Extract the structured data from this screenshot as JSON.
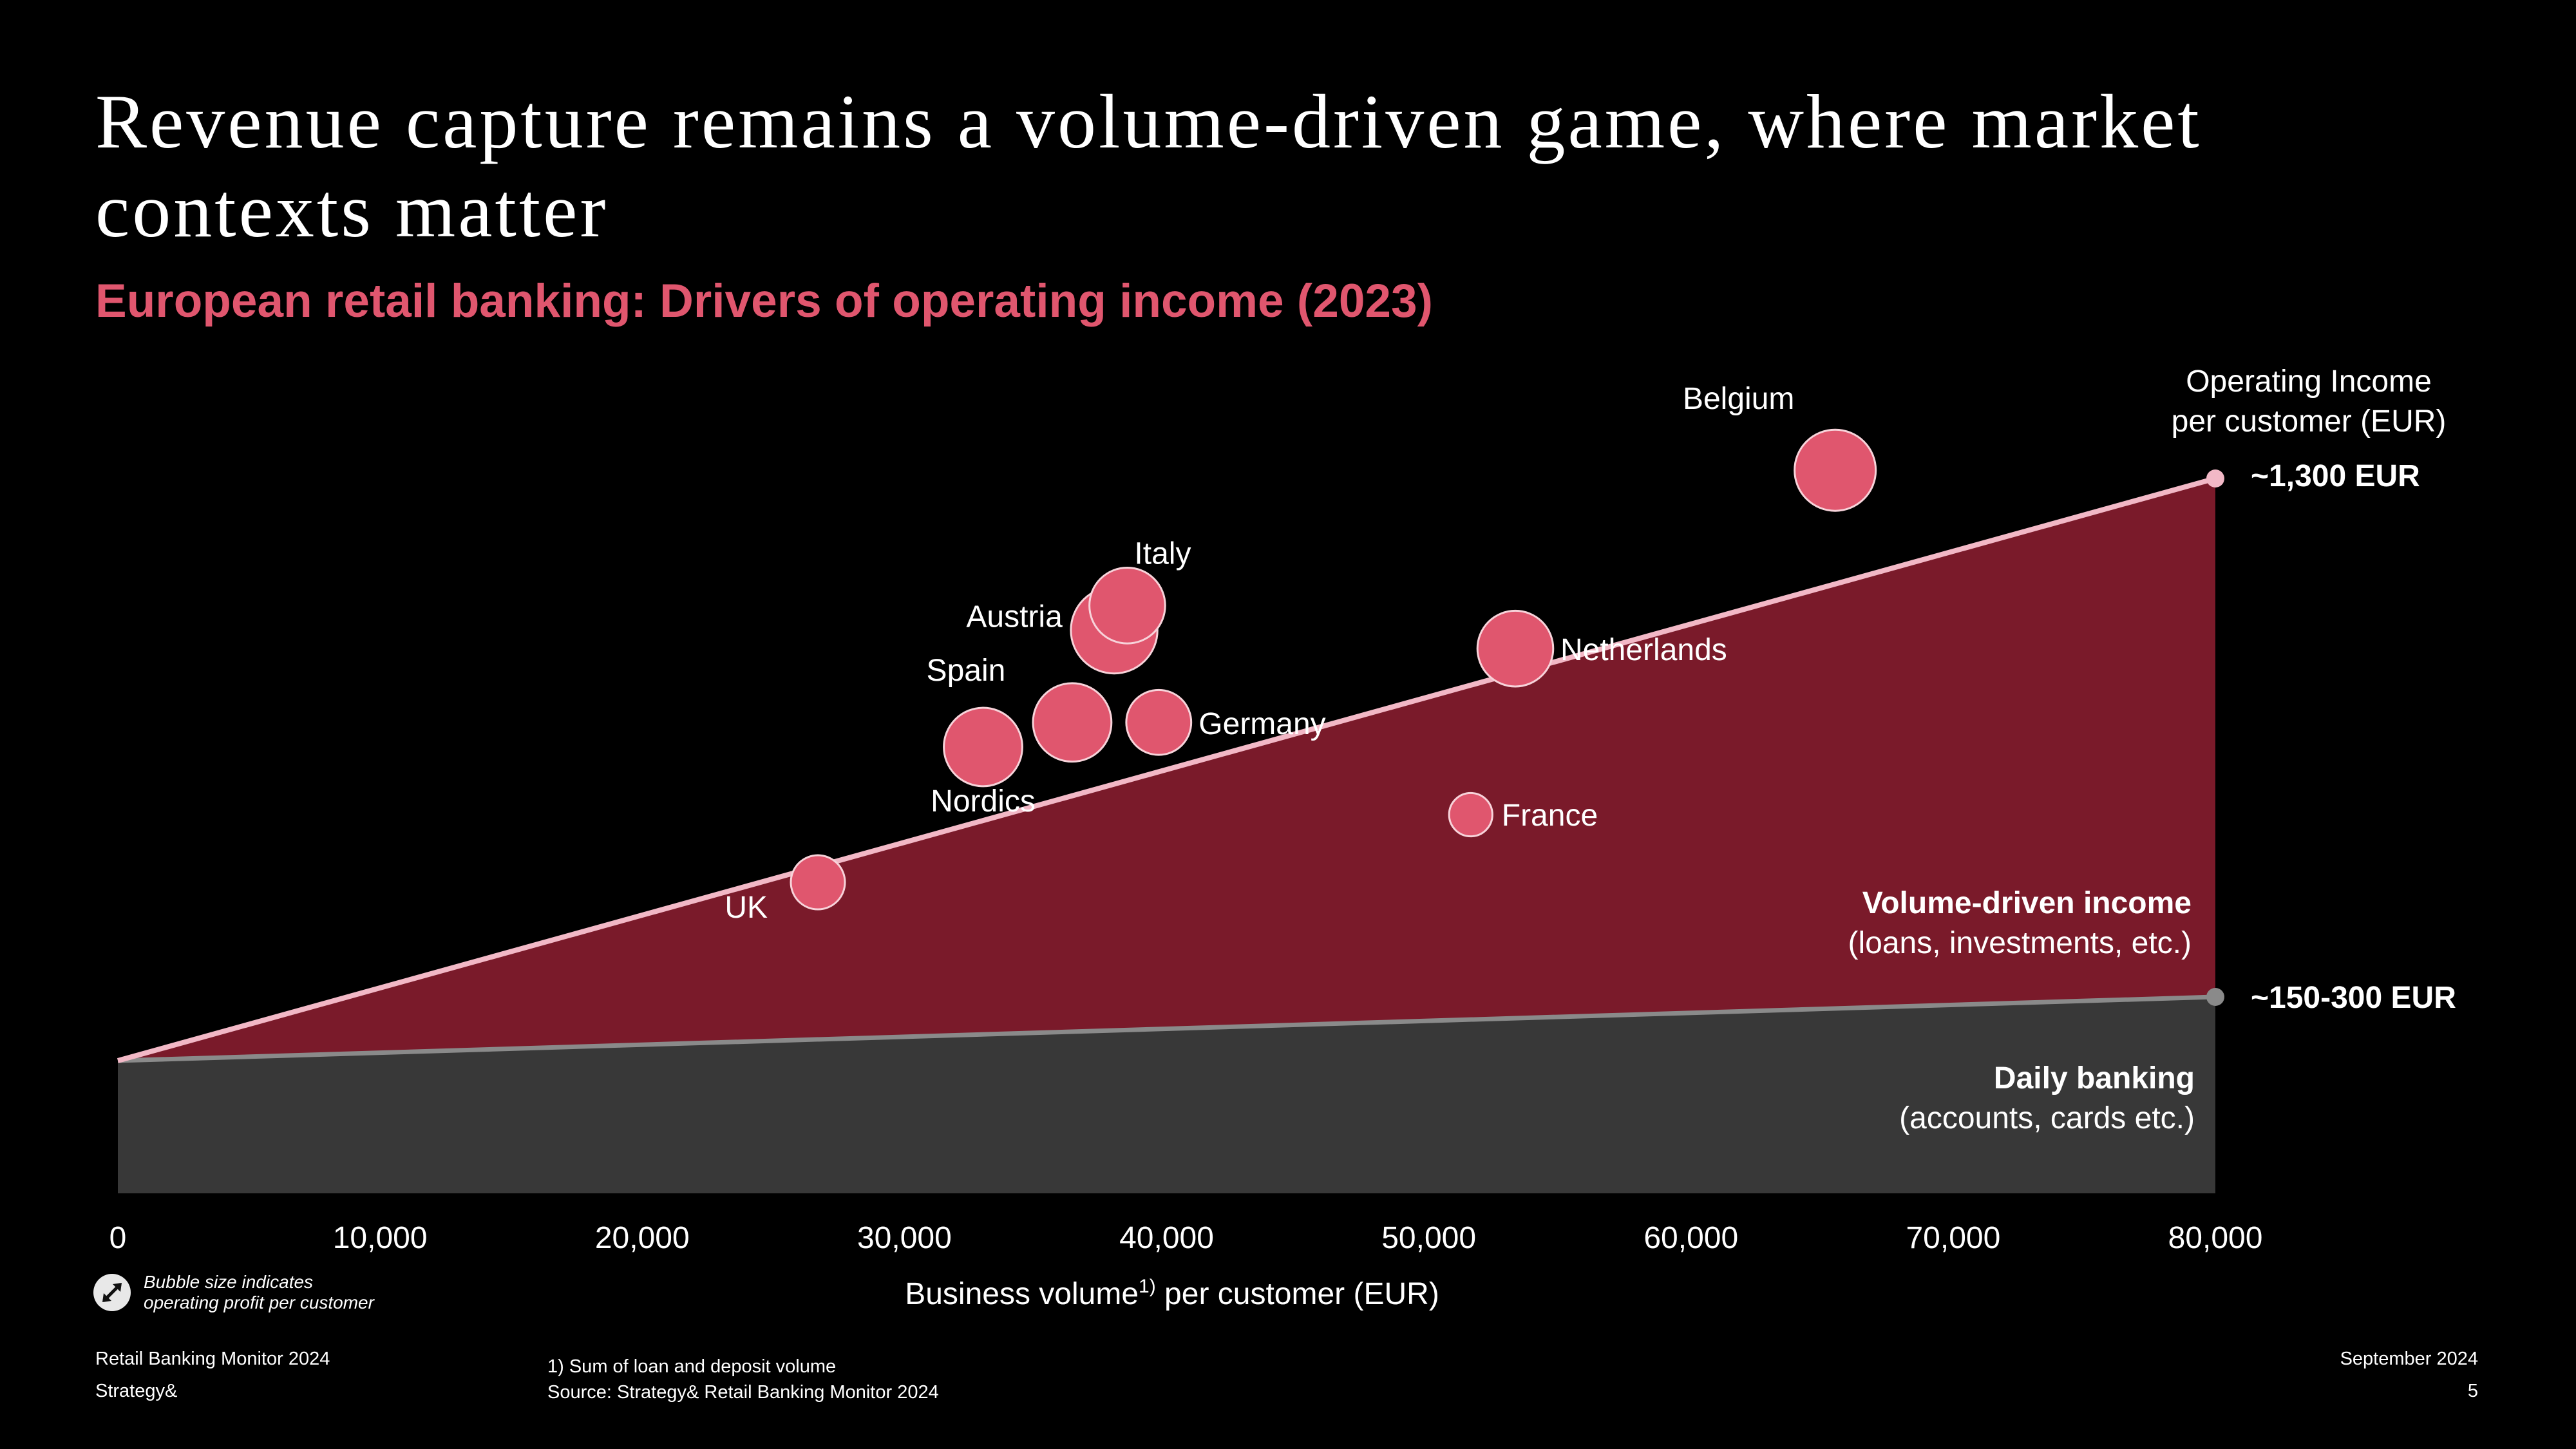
{
  "title": "Revenue capture remains a volume-driven game, where market contexts matter",
  "subtitle": "European retail banking: Drivers of operating income (2023)",
  "chart_data": {
    "type": "scatter",
    "xlabel": "Business volume",
    "xlabel_sup": "1)",
    "xlabel_suffix": " per customer (EUR)",
    "ylabel": "Operating Income per customer (EUR)",
    "ylabel_lines": [
      "Operating Income",
      "per customer (EUR)"
    ],
    "xlim": [
      0,
      80000
    ],
    "x_ticks": [
      0,
      10000,
      20000,
      30000,
      40000,
      50000,
      60000,
      70000,
      80000
    ],
    "x_tick_labels": [
      "0",
      "10,000",
      "20,000",
      "30,000",
      "40,000",
      "50,000",
      "60,000",
      "70,000",
      "80,000"
    ],
    "bands": {
      "upper_end_label": "~1,300 EUR",
      "lower_end_label": "~150-300 EUR",
      "volume_title": "Volume-driven income",
      "volume_subtitle": "(loans, investments, etc.)",
      "daily_title": "Daily banking",
      "daily_subtitle": "(accounts, cards etc.)"
    },
    "series": [
      {
        "points": [
          {
            "label": "UK",
            "x": 26700,
            "y": 1.45,
            "size": 1.0
          },
          {
            "label": "Nordics",
            "x": 33000,
            "y": 2.55,
            "size": 1.45
          },
          {
            "label": "Spain",
            "x": 36400,
            "y": 2.75,
            "size": 1.45
          },
          {
            "label": "Austria",
            "x": 38000,
            "y": 3.5,
            "size": 1.6
          },
          {
            "label": "Italy",
            "x": 38500,
            "y": 3.7,
            "size": 1.4
          },
          {
            "label": "Germany",
            "x": 39700,
            "y": 2.75,
            "size": 1.2
          },
          {
            "label": "France",
            "x": 51600,
            "y": 2.0,
            "size": 0.8
          },
          {
            "label": "Netherlands",
            "x": 53300,
            "y": 3.35,
            "size": 1.4
          },
          {
            "label": "Belgium",
            "x": 65500,
            "y": 4.8,
            "size": 1.5
          }
        ]
      }
    ],
    "colors": {
      "bubble": "#e0566e",
      "volume_band": "#7a1a2a",
      "daily_band": "#383838",
      "upper_line": "#f2b8c6",
      "lower_line": "#8a8a8a"
    }
  },
  "legend_note": {
    "text_line1": "Bubble size indicates",
    "text_line2": "operating profit per customer",
    "icon": "diagonal-arrows-icon"
  },
  "footer": {
    "left_line1": "Retail Banking Monitor 2024",
    "left_line2": "Strategy&",
    "note_line1": "1) Sum of loan and deposit volume",
    "note_line2": "Source: Strategy& Retail Banking Monitor 2024",
    "date": "September 2024",
    "page": "5"
  }
}
